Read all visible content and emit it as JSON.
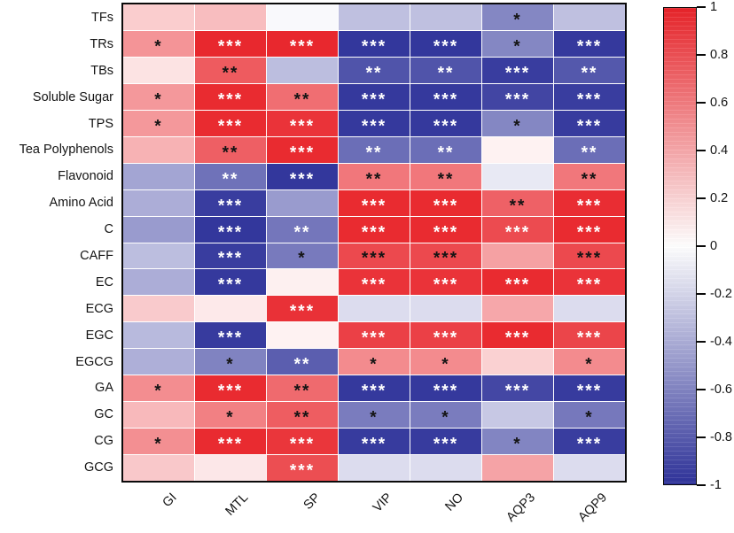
{
  "chart_data": {
    "type": "heatmap",
    "title": "",
    "rows": [
      "TFs",
      "TRs",
      "TBs",
      "Soluble Sugar",
      "TPS",
      "Tea Polyphenols",
      "Flavonoid",
      "Amino Acid",
      "C",
      "CAFF",
      "EC",
      "ECG",
      "EGC",
      "EGCG",
      "GA",
      "GC",
      "CG",
      "GCG"
    ],
    "columns": [
      "GI",
      "MTL",
      "SP",
      "VIP",
      "NO",
      "AQP3",
      "AQP9"
    ],
    "values": [
      [
        0.23,
        0.3,
        -0.03,
        -0.31,
        -0.31,
        -0.59,
        -0.31
      ],
      [
        0.49,
        0.98,
        0.98,
        -0.98,
        -0.98,
        -0.59,
        -0.97
      ],
      [
        0.13,
        0.75,
        -0.32,
        -0.84,
        -0.84,
        -0.95,
        -0.82
      ],
      [
        0.47,
        0.97,
        0.66,
        -0.97,
        -0.97,
        -0.91,
        -0.95
      ],
      [
        0.47,
        0.97,
        0.93,
        -0.97,
        -0.97,
        -0.59,
        -0.96
      ],
      [
        0.35,
        0.73,
        0.97,
        -0.71,
        -0.71,
        0.06,
        -0.71
      ],
      [
        -0.44,
        -0.69,
        -0.98,
        0.62,
        0.62,
        -0.11,
        0.62
      ],
      [
        -0.4,
        -0.95,
        -0.49,
        0.97,
        0.97,
        0.72,
        0.96
      ],
      [
        -0.49,
        -0.98,
        -0.67,
        0.97,
        0.97,
        0.82,
        0.97
      ],
      [
        -0.32,
        -0.95,
        -0.65,
        0.83,
        0.83,
        0.43,
        0.83
      ],
      [
        -0.4,
        -0.97,
        0.07,
        0.93,
        0.93,
        0.97,
        0.93
      ],
      [
        0.24,
        0.1,
        0.94,
        -0.17,
        -0.17,
        0.4,
        -0.17
      ],
      [
        -0.34,
        -0.96,
        0.06,
        0.87,
        0.87,
        0.97,
        0.85
      ],
      [
        -0.39,
        -0.61,
        -0.79,
        0.53,
        0.53,
        0.21,
        0.53
      ],
      [
        0.52,
        0.97,
        0.68,
        -0.97,
        -0.97,
        -0.9,
        -0.96
      ],
      [
        0.32,
        0.58,
        0.74,
        -0.64,
        -0.64,
        -0.27,
        -0.66
      ],
      [
        0.51,
        0.97,
        0.92,
        -0.96,
        -0.96,
        -0.6,
        -0.95
      ],
      [
        0.25,
        0.11,
        0.81,
        -0.17,
        -0.17,
        0.42,
        -0.17
      ]
    ],
    "significance": [
      [
        "",
        "",
        "",
        "",
        "",
        "*",
        ""
      ],
      [
        "*",
        "***",
        "***",
        "***",
        "***",
        "*",
        "***"
      ],
      [
        "",
        "**",
        "",
        "**",
        "**",
        "***",
        "**"
      ],
      [
        "*",
        "***",
        "**",
        "***",
        "***",
        "***",
        "***"
      ],
      [
        "*",
        "***",
        "***",
        "***",
        "***",
        "*",
        "***"
      ],
      [
        "",
        "**",
        "***",
        "**",
        "**",
        "",
        "**"
      ],
      [
        "",
        "**",
        "***",
        "**",
        "**",
        "",
        "**"
      ],
      [
        "",
        "***",
        "",
        "***",
        "***",
        "**",
        "***"
      ],
      [
        "",
        "***",
        "**",
        "***",
        "***",
        "***",
        "***"
      ],
      [
        "",
        "***",
        "*",
        "***",
        "***",
        "",
        "***"
      ],
      [
        "",
        "***",
        "",
        "***",
        "***",
        "***",
        "***"
      ],
      [
        "",
        "",
        "***",
        "",
        "",
        "",
        ""
      ],
      [
        "",
        "***",
        "",
        "***",
        "***",
        "***",
        "***"
      ],
      [
        "",
        "*",
        "**",
        "*",
        "*",
        "",
        "*"
      ],
      [
        "*",
        "***",
        "**",
        "***",
        "***",
        "***",
        "***"
      ],
      [
        "",
        "*",
        "**",
        "*",
        "*",
        "",
        "*"
      ],
      [
        "*",
        "***",
        "***",
        "***",
        "***",
        "*",
        "***"
      ],
      [
        "",
        "",
        "***",
        "",
        "",
        "",
        ""
      ]
    ],
    "star_colors": [
      [
        "",
        "",
        "",
        "",
        "",
        "b",
        ""
      ],
      [
        "b",
        "w",
        "w",
        "w",
        "w",
        "b",
        "w"
      ],
      [
        "",
        "b",
        "",
        "w",
        "w",
        "w",
        "w"
      ],
      [
        "b",
        "w",
        "b",
        "w",
        "w",
        "w",
        "w"
      ],
      [
        "b",
        "w",
        "w",
        "w",
        "w",
        "b",
        "w"
      ],
      [
        "",
        "b",
        "w",
        "w",
        "w",
        "",
        "w"
      ],
      [
        "",
        "w",
        "w",
        "b",
        "b",
        "",
        "b"
      ],
      [
        "",
        "w",
        "",
        "w",
        "w",
        "b",
        "w"
      ],
      [
        "",
        "w",
        "w",
        "w",
        "w",
        "w",
        "w"
      ],
      [
        "",
        "w",
        "b",
        "b",
        "b",
        "",
        "b"
      ],
      [
        "",
        "w",
        "",
        "w",
        "w",
        "w",
        "w"
      ],
      [
        "",
        "",
        "w",
        "",
        "",
        "",
        ""
      ],
      [
        "",
        "w",
        "",
        "w",
        "w",
        "w",
        "w"
      ],
      [
        "",
        "b",
        "w",
        "b",
        "b",
        "",
        "b"
      ],
      [
        "b",
        "w",
        "b",
        "w",
        "w",
        "w",
        "w"
      ],
      [
        "",
        "b",
        "b",
        "b",
        "b",
        "",
        "b"
      ],
      [
        "b",
        "w",
        "w",
        "w",
        "w",
        "b",
        "w"
      ],
      [
        "",
        "",
        "w",
        "",
        "",
        "",
        ""
      ]
    ],
    "colorbar": {
      "position": "right",
      "range": [
        -1,
        1
      ],
      "max_color": "#E8242A",
      "mid_color": "#FFFFFF",
      "min_color": "#2F339A",
      "ticks": [
        "1",
        "0.8",
        "0.6",
        "0.4",
        "0.2",
        "0",
        "-0.2",
        "-0.4",
        "-0.6",
        "-0.8",
        "-1"
      ]
    },
    "legend_note": "",
    "grid": "white 1px separators, black outer frame",
    "x_tick_rotation_deg": -45
  }
}
